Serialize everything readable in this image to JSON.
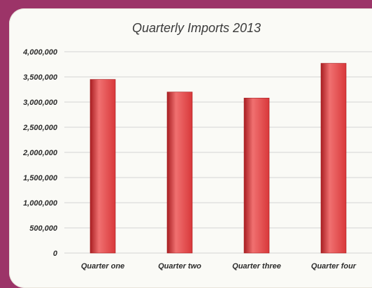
{
  "chart_data": {
    "type": "bar",
    "title": "Quarterly Imports 2013",
    "xlabel": "",
    "ylabel": "",
    "categories": [
      "Quarter one",
      "Quarter two",
      "Quarter three",
      "Quarter four"
    ],
    "values": [
      3450000,
      3200000,
      3080000,
      3770000
    ],
    "ylim": [
      0,
      4000000
    ],
    "y_ticks": [
      "0",
      "500,000",
      "1,000,000",
      "1,500,000",
      "2,000,000",
      "2,500,000",
      "3,000,000",
      "3,500,000",
      "4,000,000"
    ],
    "grid": true,
    "legend": "none",
    "colors": {
      "bar": "#d8383a",
      "bar_highlight": "#f07070",
      "bar_shadow": "#a81e22",
      "background": "#9c3468",
      "panel": "#fafaf6",
      "grid": "#d4d4d4"
    }
  }
}
